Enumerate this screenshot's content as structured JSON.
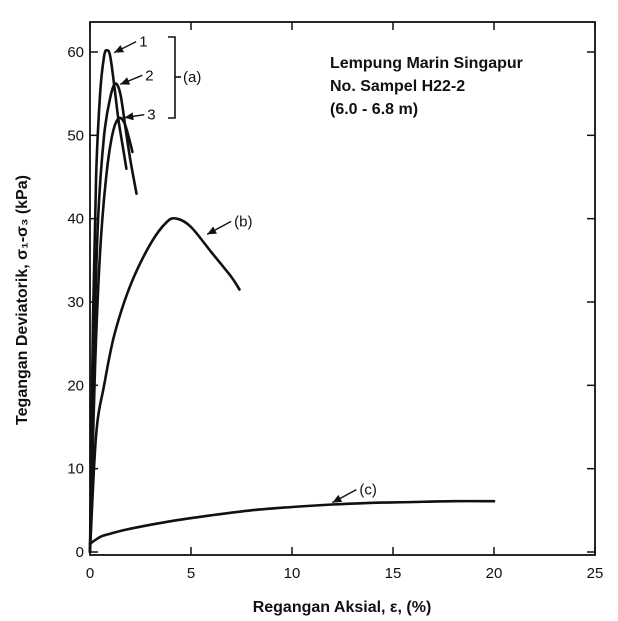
{
  "chart_data": {
    "type": "line",
    "xlabel": "Regangan Aksial, ε, (%)",
    "ylabel": "Tegangan Deviatorik, σ₁-σ₃ (kPa)",
    "xlim": [
      0,
      25
    ],
    "ylim": [
      0,
      65
    ],
    "xticks": [
      0,
      5,
      10,
      15,
      20,
      25
    ],
    "yticks": [
      0,
      10,
      20,
      30,
      40,
      50,
      60
    ],
    "x_tick_labels": [
      "0",
      "5",
      "10",
      "15",
      "20",
      "25"
    ],
    "y_tick_labels": [
      "0",
      "10",
      "20",
      "30",
      "40",
      "50",
      "60"
    ],
    "grid": false,
    "info_lines": [
      "Lempung Marin Singapur",
      "No. Sampel H22-2",
      "(6.0 - 6.8 m)"
    ],
    "group_label": "(a)",
    "series": [
      {
        "name": "1",
        "x": [
          0,
          0.15,
          0.3,
          0.5,
          0.7,
          0.85,
          1.0,
          1.2,
          1.4,
          1.6,
          1.8
        ],
        "y": [
          0,
          28,
          45,
          55,
          59.5,
          60.2,
          59.5,
          56,
          52,
          49,
          46
        ]
      },
      {
        "name": "2",
        "x": [
          0,
          0.2,
          0.4,
          0.7,
          1.0,
          1.25,
          1.5,
          1.75,
          2.0,
          2.3
        ],
        "y": [
          0,
          24,
          40,
          50,
          54.5,
          56.2,
          55,
          51,
          47,
          43
        ]
      },
      {
        "name": "3",
        "x": [
          0,
          0.25,
          0.5,
          0.8,
          1.1,
          1.4,
          1.7,
          2.0,
          2.1
        ],
        "y": [
          0,
          22,
          36,
          45,
          50,
          52,
          51.5,
          49,
          48
        ]
      },
      {
        "name": "(b)",
        "x": [
          0,
          0.3,
          0.7,
          1.2,
          2.0,
          3.0,
          3.8,
          4.3,
          5.0,
          6.0,
          7.0,
          7.4
        ],
        "y": [
          0,
          14,
          20,
          26,
          32,
          37,
          39.6,
          40,
          39,
          36,
          33,
          31.5
        ]
      },
      {
        "name": "(c)",
        "x": [
          0,
          0.5,
          1,
          2,
          4,
          6,
          8,
          10,
          12,
          14,
          16,
          18,
          20
        ],
        "y": [
          1,
          1.8,
          2.2,
          2.8,
          3.7,
          4.4,
          5.0,
          5.4,
          5.7,
          5.9,
          6.0,
          6.1,
          6.1
        ]
      }
    ],
    "annotations": [
      {
        "label": "1",
        "x": 1.0,
        "y": 59.8
      },
      {
        "label": "2",
        "x": 1.3,
        "y": 56.0
      },
      {
        "label": "3",
        "x": 1.5,
        "y": 52.0
      },
      {
        "label": "(b)",
        "x": 5.6,
        "y": 38.0
      },
      {
        "label": "(c)",
        "x": 11.8,
        "y": 5.8
      }
    ]
  }
}
